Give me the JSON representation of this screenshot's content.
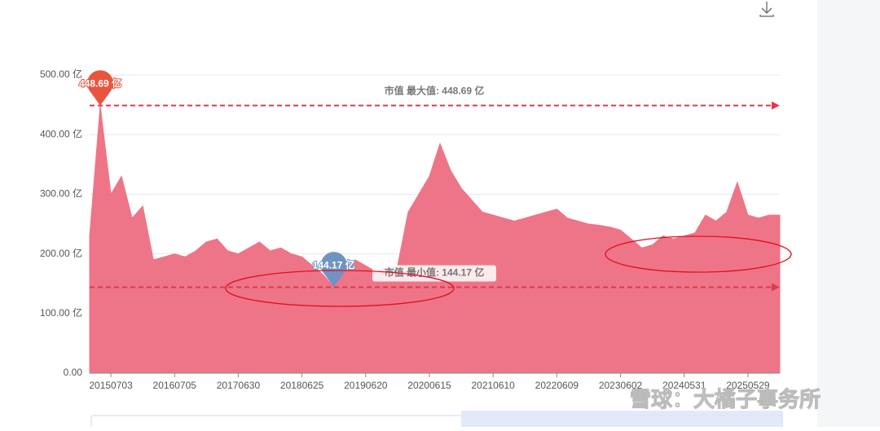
{
  "chart_data": {
    "type": "area",
    "categories": [
      null,
      null,
      "20150703",
      null,
      null,
      null,
      null,
      null,
      "20160705",
      null,
      null,
      null,
      null,
      null,
      "20170630",
      null,
      null,
      null,
      null,
      null,
      "20180625",
      null,
      null,
      null,
      null,
      null,
      "20190620",
      null,
      null,
      null,
      null,
      null,
      "20200615",
      null,
      null,
      null,
      null,
      null,
      "20210610",
      null,
      null,
      null,
      null,
      null,
      "20220609",
      null,
      null,
      null,
      null,
      null,
      "20230602",
      null,
      null,
      null,
      null,
      null,
      "20240531",
      null,
      null,
      null,
      null,
      null,
      "20250529",
      null,
      null,
      null
    ],
    "values": [
      230,
      448.69,
      300,
      330,
      260,
      280,
      190,
      195,
      200,
      195,
      205,
      220,
      225,
      205,
      200,
      210,
      220,
      205,
      210,
      200,
      195,
      180,
      165,
      144.17,
      175,
      190,
      180,
      170,
      175,
      180,
      270,
      300,
      330,
      385,
      340,
      310,
      290,
      270,
      265,
      260,
      255,
      260,
      265,
      270,
      275,
      260,
      255,
      250,
      248,
      245,
      240,
      225,
      210,
      215,
      230,
      225,
      230,
      235,
      265,
      255,
      270,
      320,
      265,
      260,
      265,
      265
    ],
    "value_labels": [
      null,
      "448.69 亿",
      null,
      null,
      null,
      null,
      null,
      null,
      null,
      null,
      null,
      null,
      null,
      null,
      null,
      null,
      null,
      null,
      null,
      null,
      null,
      null,
      null,
      "144.17 亿",
      null,
      null,
      null,
      null,
      null,
      null,
      null,
      null,
      null,
      null,
      null,
      null,
      null,
      null,
      null,
      null,
      null,
      null,
      null,
      null,
      null,
      null,
      null,
      null,
      null,
      null,
      null,
      null,
      null,
      null,
      null,
      null,
      null,
      null,
      null,
      null,
      null,
      null,
      null,
      null,
      null,
      null
    ],
    "pin_colors": [
      "#e8553e",
      "#6f94c3"
    ],
    "color": "#ee7587",
    "ylim": [
      0,
      500
    ],
    "yticks": [
      {
        "value": 0,
        "label": "0.00"
      },
      {
        "value": 100,
        "label": "100.00 亿"
      },
      {
        "value": 200,
        "label": "200.00 亿"
      },
      {
        "value": 300,
        "label": "300.00 亿"
      },
      {
        "value": 400,
        "label": "400.00 亿"
      },
      {
        "value": 500,
        "label": "500.00 亿"
      }
    ],
    "grid": true,
    "mark_line_color": "#e0384f",
    "mark_lines": [
      {
        "value": 448.69,
        "label": "市值 最大值: 448.69 亿"
      },
      {
        "value": 144.17,
        "label": "市值 最小值: 144.17 亿"
      }
    ]
  },
  "watermark": "雪球：大橘子事务所"
}
